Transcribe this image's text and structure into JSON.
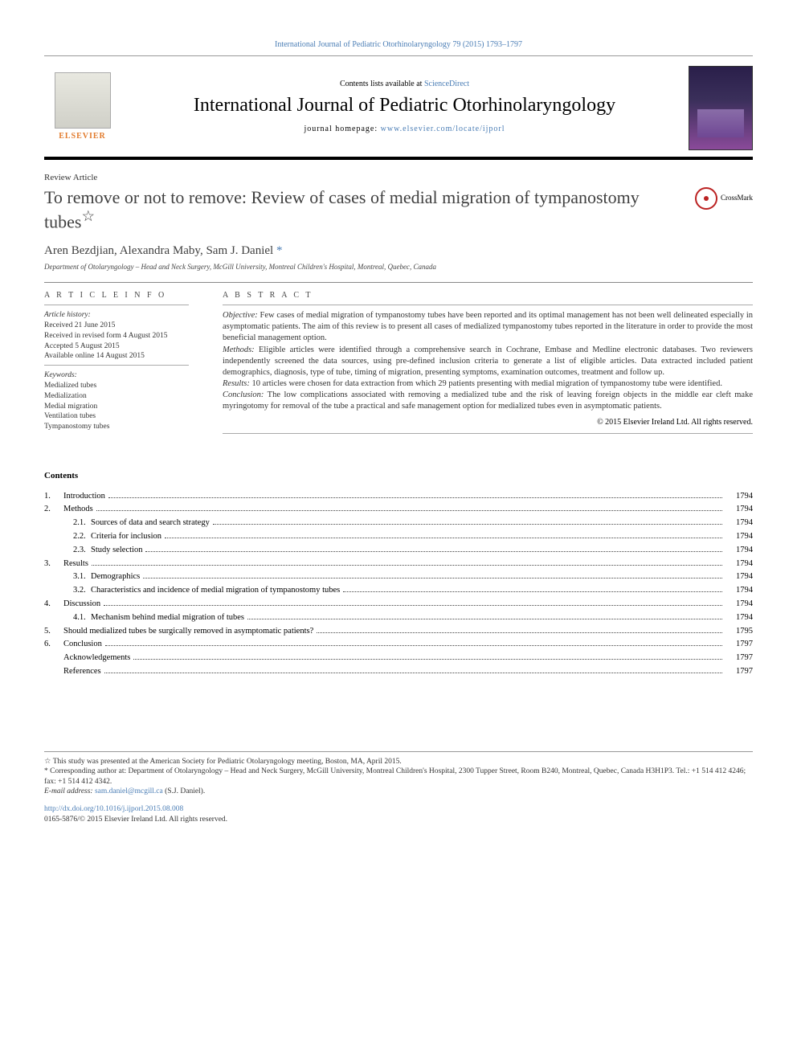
{
  "header": {
    "citation": "International Journal of Pediatric Otorhinolaryngology 79 (2015) 1793–1797",
    "contents_prefix": "Contents lists available at ",
    "contents_link": "ScienceDirect",
    "journal_name": "International Journal of Pediatric Otorhinolaryngology",
    "homepage_prefix": "journal homepage: ",
    "homepage_url": "www.elsevier.com/locate/ijporl",
    "publisher": "ELSEVIER"
  },
  "article": {
    "type": "Review Article",
    "title": "To remove or not to remove: Review of cases of medial migration of tympanostomy tubes",
    "title_note": "☆",
    "crossmark": "CrossMark",
    "authors": "Aren Bezdjian, Alexandra Maby, Sam J. Daniel",
    "corr_mark": "*",
    "affiliation": "Department of Otolaryngology – Head and Neck Surgery, McGill University, Montreal Children's Hospital, Montreal, Quebec, Canada"
  },
  "info": {
    "heading": "A R T I C L E  I N F O",
    "history_label": "Article history:",
    "history": [
      "Received 21 June 2015",
      "Received in revised form 4 August 2015",
      "Accepted 5 August 2015",
      "Available online 14 August 2015"
    ],
    "keywords_label": "Keywords:",
    "keywords": [
      "Medialized tubes",
      "Medialization",
      "Medial migration",
      "Ventilation tubes",
      "Tympanostomy tubes"
    ]
  },
  "abstract": {
    "heading": "A B S T R A C T",
    "objective_label": "Objective:",
    "objective": " Few cases of medial migration of tympanostomy tubes have been reported and its optimal management has not been well delineated especially in asymptomatic patients. The aim of this review is to present all cases of medialized tympanostomy tubes reported in the literature in order to provide the most beneficial management option.",
    "methods_label": "Methods:",
    "methods": " Eligible articles were identified through a comprehensive search in Cochrane, Embase and Medline electronic databases. Two reviewers independently screened the data sources, using pre-defined inclusion criteria to generate a list of eligible articles. Data extracted included patient demographics, diagnosis, type of tube, timing of migration, presenting symptoms, examination outcomes, treatment and follow up.",
    "results_label": "Results:",
    "results": " 10 articles were chosen for data extraction from which 29 patients presenting with medial migration of tympanostomy tube were identified.",
    "conclusion_label": "Conclusion:",
    "conclusion": " The low complications associated with removing a medialized tube and the risk of leaving foreign objects in the middle ear cleft make myringotomy for removal of the tube a practical and safe management option for medialized tubes even in asymptomatic patients.",
    "copyright": "© 2015 Elsevier Ireland Ltd. All rights reserved."
  },
  "contents": {
    "heading": "Contents",
    "items": [
      {
        "num": "1.",
        "label": "Introduction",
        "page": "1794"
      },
      {
        "num": "2.",
        "label": "Methods",
        "page": "1794"
      },
      {
        "sub": "2.1.",
        "label": "Sources of data and search strategy",
        "page": "1794"
      },
      {
        "sub": "2.2.",
        "label": "Criteria for inclusion",
        "page": "1794"
      },
      {
        "sub": "2.3.",
        "label": "Study selection",
        "page": "1794"
      },
      {
        "num": "3.",
        "label": "Results",
        "page": "1794"
      },
      {
        "sub": "3.1.",
        "label": "Demographics",
        "page": "1794"
      },
      {
        "sub": "3.2.",
        "label": "Characteristics and incidence of medial migration of tympanostomy tubes",
        "page": "1794"
      },
      {
        "num": "4.",
        "label": "Discussion",
        "page": "1794"
      },
      {
        "sub": "4.1.",
        "label": "Mechanism behind medial migration of tubes",
        "page": "1794"
      },
      {
        "num": "5.",
        "label": "Should medialized tubes be surgically removed in asymptomatic patients?",
        "page": "1795"
      },
      {
        "num": "6.",
        "label": "Conclusion",
        "page": "1797"
      },
      {
        "label": "Acknowledgements",
        "page": "1797"
      },
      {
        "label": "References",
        "page": "1797"
      }
    ]
  },
  "footnotes": {
    "star": "☆ This study was presented at the American Society for Pediatric Otolaryngology meeting, Boston, MA, April 2015.",
    "corr": "* Corresponding author at: Department of Otolaryngology – Head and Neck Surgery, McGill University, Montreal Children's Hospital, 2300 Tupper Street, Room B240, Montreal, Quebec, Canada H3H1P3. Tel.: +1 514 412 4246; fax: +1 514 412 4342.",
    "email_label": "E-mail address: ",
    "email": "sam.daniel@mcgill.ca",
    "email_suffix": " (S.J. Daniel).",
    "doi": "http://dx.doi.org/10.1016/j.ijporl.2015.08.008",
    "issn": "0165-5876/© 2015 Elsevier Ireland Ltd. All rights reserved."
  },
  "colors": {
    "link": "#4a7db5",
    "accent": "#e27b2d"
  }
}
